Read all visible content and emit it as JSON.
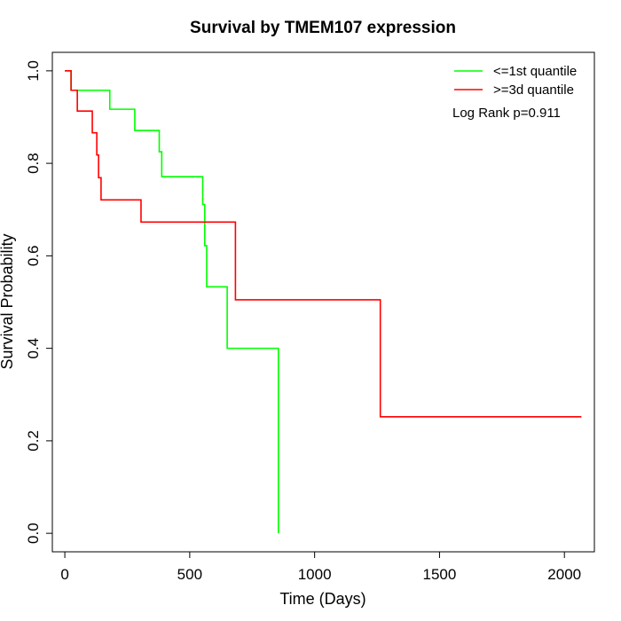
{
  "chart_data": {
    "type": "line",
    "title": "Survival by TMEM107 expression",
    "xlabel": "Time (Days)",
    "ylabel": "Survival Probability",
    "xlim": [
      -50,
      2120
    ],
    "ylim": [
      -0.04,
      1.04
    ],
    "x_ticks": [
      0,
      500,
      1000,
      1500,
      2000
    ],
    "y_ticks": [
      0.0,
      0.2,
      0.4,
      0.6,
      0.8,
      1.0
    ],
    "x_tick_labels": [
      "0",
      "500",
      "1000",
      "1500",
      "2000"
    ],
    "y_tick_labels": [
      "0.0",
      "0.2",
      "0.4",
      "0.6",
      "0.8",
      "1.0"
    ],
    "grid": false,
    "legend_position": "top-right",
    "annotation": "Log Rank p=0.911",
    "series": [
      {
        "name": "<=1st quantile",
        "color": "#00ff00",
        "x": [
          0,
          25,
          155,
          180,
          280,
          378,
          388,
          552,
          560,
          568,
          650,
          855
        ],
        "y": [
          1.0,
          0.958,
          0.958,
          0.917,
          0.871,
          0.825,
          0.771,
          0.711,
          0.622,
          0.533,
          0.4,
          0.0
        ]
      },
      {
        "name": ">=3d quantile",
        "color": "#ff0000",
        "x": [
          0,
          25,
          50,
          110,
          128,
          135,
          145,
          305,
          683,
          1263,
          2068
        ],
        "y": [
          1.0,
          0.958,
          0.913,
          0.866,
          0.818,
          0.769,
          0.721,
          0.673,
          0.505,
          0.252,
          0.252
        ]
      }
    ]
  }
}
